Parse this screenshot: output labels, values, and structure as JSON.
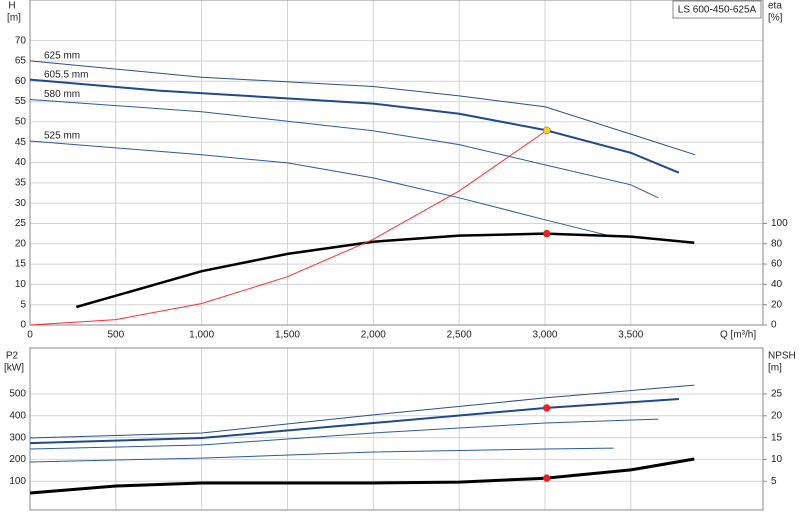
{
  "chart_data": [
    {
      "type": "line",
      "title": "LS 600-450-625A",
      "x_label": "Q [m³/h]",
      "y_label": "H",
      "y_unit": "[m]",
      "y2_label": "eta",
      "y2_unit": "[%]",
      "xlim": [
        0,
        4270
      ],
      "ylim": [
        0,
        80
      ],
      "y2lim": [
        0,
        320
      ],
      "grid": true,
      "xticks": [
        0,
        500,
        {
          "value": 1000,
          "label": "1,000"
        },
        {
          "value": 1500,
          "label": "1,500"
        },
        {
          "value": 2000,
          "label": "2,000"
        },
        {
          "value": 2500,
          "label": "2,500"
        },
        {
          "value": 3000,
          "label": "3,000"
        },
        {
          "value": 3500,
          "label": "3,500"
        }
      ],
      "yticks": [
        0,
        5,
        10,
        15,
        20,
        25,
        30,
        35,
        40,
        45,
        50,
        55,
        60,
        65,
        70
      ],
      "y2ticks": [
        0,
        20,
        40,
        60,
        80,
        100
      ],
      "series": [
        {
          "name": "625 mm",
          "color": "#2b4f8c",
          "width": 1,
          "x": [
            0,
            1000,
            2000,
            2500,
            3000,
            3500,
            3875
          ],
          "values": [
            65,
            61,
            58.7,
            56.4,
            53.7,
            47,
            41.9
          ]
        },
        {
          "name": "605.5 mm",
          "color": "#1f4a8a",
          "width": 2,
          "x": [
            0,
            750,
            2000,
            2500,
            3000,
            3500,
            3780
          ],
          "values": [
            60.4,
            57.7,
            54.5,
            52,
            48,
            42.4,
            37.5
          ]
        },
        {
          "name": "580 mm",
          "color": "#2b5b9c",
          "width": 1,
          "x": [
            0,
            1000,
            2000,
            2500,
            3000,
            3500,
            3660
          ],
          "values": [
            55.5,
            52.5,
            47.8,
            44.4,
            39.4,
            34.5,
            31.3
          ]
        },
        {
          "name": "525 mm",
          "color": "#2b5b9c",
          "width": 1,
          "x": [
            0,
            1000,
            1500,
            2000,
            2500,
            3000,
            3400
          ],
          "values": [
            45.3,
            41.9,
            39.9,
            36.2,
            31.3,
            25.9,
            21.7
          ]
        },
        {
          "color": "#000000",
          "width": 2.5,
          "axis": "y2",
          "x": [
            270,
            1000,
            1500,
            2000,
            2500,
            3000,
            3500,
            3870
          ],
          "values": [
            17.7,
            53,
            70,
            82,
            88,
            90,
            87,
            81
          ]
        },
        {
          "color": "#ff3030",
          "width": 1,
          "x": [
            0,
            500,
            1000,
            1500,
            2000,
            2500,
            3010
          ],
          "values": [
            0,
            1.32,
            5.29,
            11.9,
            21.1,
            33,
            47.9
          ]
        }
      ],
      "points": [
        {
          "color": "#ffd21f",
          "x": 3010,
          "value": 47.9
        },
        {
          "color": "#ff1a1a",
          "axis": "y2",
          "x": 3010,
          "value": 90
        }
      ]
    },
    {
      "type": "line",
      "y_label": "P2",
      "y_unit": "[kW]",
      "y2_label": "NPSH",
      "y2_unit": "[m]",
      "xlim": [
        0,
        4270
      ],
      "ylim": [
        -32,
        711
      ],
      "y2lim": [
        -1.6,
        35.55
      ],
      "grid": true,
      "xticks": [
        0,
        500,
        1000,
        1500,
        2000,
        2500,
        3000,
        3500
      ],
      "yticks": [
        100,
        200,
        300,
        400,
        500
      ],
      "y2ticks": [
        5,
        10,
        15,
        20,
        25
      ],
      "series": [
        {
          "color": "#2b4f8c",
          "width": 1,
          "x": [
            0,
            1000,
            2000,
            3000,
            3870
          ],
          "values": [
            298,
            321,
            404,
            482,
            541
          ]
        },
        {
          "color": "#1f4a8a",
          "width": 2,
          "x": [
            0,
            1000,
            2000,
            3000,
            3780
          ],
          "values": [
            275,
            298,
            367,
            436,
            477
          ]
        },
        {
          "color": "#2b5b9c",
          "width": 1,
          "x": [
            0,
            1000,
            2000,
            3000,
            3660
          ],
          "values": [
            248,
            266,
            321,
            367,
            385
          ]
        },
        {
          "color": "#2b5b9c",
          "width": 1,
          "x": [
            0,
            1000,
            2000,
            3000,
            3400
          ],
          "values": [
            188,
            206,
            234,
            248,
            252
          ]
        },
        {
          "color": "#000000",
          "width": 3,
          "axis": "y2",
          "x": [
            0,
            500,
            1000,
            2000,
            2500,
            3000,
            3500,
            3870
          ],
          "values": [
            2.3,
            3.9,
            4.6,
            4.6,
            4.8,
            5.7,
            7.6,
            10.1
          ]
        }
      ],
      "points": [
        {
          "color": "#ff1a1a",
          "x": 3010,
          "value": 436
        },
        {
          "color": "#ff1a1a",
          "axis": "y2",
          "x": 3010,
          "value": 5.7
        }
      ]
    }
  ]
}
